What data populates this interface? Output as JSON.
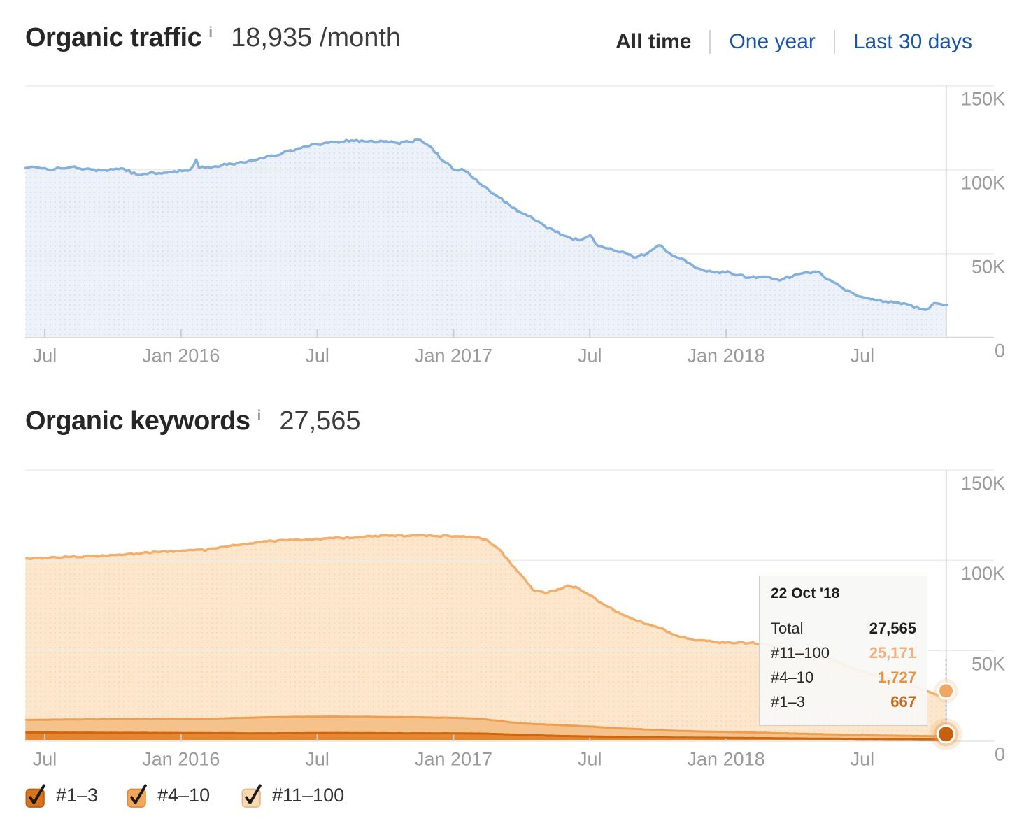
{
  "traffic_section": {
    "title": "Organic traffic",
    "info_icon": "i",
    "value": "18,935 /month",
    "range_tabs": [
      {
        "label": "All time",
        "active": true
      },
      {
        "label": "One year",
        "active": false
      },
      {
        "label": "Last 30 days",
        "active": false
      }
    ]
  },
  "keywords_section": {
    "title": "Organic keywords",
    "info_icon": "i",
    "value": "27,565"
  },
  "tooltip": {
    "date": "22 Oct '18",
    "rows": [
      {
        "label": "Total",
        "value": "27,565",
        "color": "#1f1f1f"
      },
      {
        "label": "#11–100",
        "value": "25,171",
        "color": "#f2b27d"
      },
      {
        "label": "#4–10",
        "value": "1,727",
        "color": "#e8913f"
      },
      {
        "label": "#1–3",
        "value": "667",
        "color": "#ce6a1c"
      }
    ]
  },
  "legend": [
    {
      "label": "#1–3",
      "box_fill": "#d4741f",
      "box_border": "#bc5c12"
    },
    {
      "label": "#4–10",
      "box_fill": "#f2a759",
      "box_border": "#dd8c3c"
    },
    {
      "label": "#11–100",
      "box_fill": "#f8d9b0",
      "box_border": "#e9b87f"
    }
  ],
  "colors": {
    "traffic_line": "#84b0de",
    "traffic_fill": "#edf1f9",
    "link_blue": "#1a56a8"
  },
  "chart_data": [
    {
      "type": "area",
      "title": "Organic traffic",
      "x_tick_labels": [
        "Jul",
        "Jan 2016",
        "Jul",
        "Jan 2017",
        "Jul",
        "Jan 2018",
        "Jul"
      ],
      "y_tick_labels": [
        "150K",
        "100K",
        "50K",
        "0"
      ],
      "ylim": [
        0,
        150000
      ],
      "series": [
        {
          "name": "Organic traffic",
          "stroke": "#84b0de",
          "fill": "#edf1f9",
          "points": [
            [
              "2015-06-05",
              101000
            ],
            [
              "2015-06-20",
              101500
            ],
            [
              "2015-07-01",
              101000
            ],
            [
              "2015-07-15",
              100500
            ],
            [
              "2015-08-01",
              101200
            ],
            [
              "2015-08-10",
              102000
            ],
            [
              "2015-08-20",
              100200
            ],
            [
              "2015-09-01",
              100200
            ],
            [
              "2015-09-15",
              99600
            ],
            [
              "2015-10-01",
              100200
            ],
            [
              "2015-10-15",
              100600
            ],
            [
              "2015-11-01",
              97000
            ],
            [
              "2015-11-15",
              97400
            ],
            [
              "2015-12-01",
              98000
            ],
            [
              "2015-12-15",
              98600
            ],
            [
              "2016-01-01",
              99200
            ],
            [
              "2016-01-12",
              100000
            ],
            [
              "2016-01-20",
              106000
            ],
            [
              "2016-01-24",
              101000
            ],
            [
              "2016-02-01",
              101200
            ],
            [
              "2016-02-15",
              102000
            ],
            [
              "2016-03-01",
              103000
            ],
            [
              "2016-03-15",
              104000
            ],
            [
              "2016-04-01",
              105500
            ],
            [
              "2016-04-15",
              107000
            ],
            [
              "2016-05-01",
              108500
            ],
            [
              "2016-05-15",
              110000
            ],
            [
              "2016-06-01",
              112000
            ],
            [
              "2016-06-15",
              114000
            ],
            [
              "2016-07-01",
              115000
            ],
            [
              "2016-07-15",
              116000
            ],
            [
              "2016-08-01",
              116500
            ],
            [
              "2016-08-15",
              117500
            ],
            [
              "2016-09-01",
              117000
            ],
            [
              "2016-09-15",
              116300
            ],
            [
              "2016-10-01",
              117000
            ],
            [
              "2016-10-15",
              116000
            ],
            [
              "2016-11-01",
              116500
            ],
            [
              "2016-11-12",
              118000
            ],
            [
              "2016-11-20",
              116000
            ],
            [
              "2016-12-01",
              113000
            ],
            [
              "2016-12-15",
              105500
            ],
            [
              "2017-01-01",
              100000
            ],
            [
              "2017-01-10",
              100500
            ],
            [
              "2017-01-18",
              98500
            ],
            [
              "2017-02-01",
              92500
            ],
            [
              "2017-02-15",
              88000
            ],
            [
              "2017-03-01",
              83500
            ],
            [
              "2017-03-15",
              79000
            ],
            [
              "2017-04-01",
              74000
            ],
            [
              "2017-04-15",
              71000
            ],
            [
              "2017-05-01",
              66500
            ],
            [
              "2017-05-15",
              63000
            ],
            [
              "2017-06-01",
              60000
            ],
            [
              "2017-06-15",
              58000
            ],
            [
              "2017-07-01",
              61000
            ],
            [
              "2017-07-08",
              56000
            ],
            [
              "2017-07-15",
              54500
            ],
            [
              "2017-08-01",
              52000
            ],
            [
              "2017-08-17",
              50500
            ],
            [
              "2017-09-01",
              47800
            ],
            [
              "2017-09-15",
              50000
            ],
            [
              "2017-10-01",
              55000
            ],
            [
              "2017-10-08",
              53000
            ],
            [
              "2017-10-15",
              50500
            ],
            [
              "2017-11-01",
              47000
            ],
            [
              "2017-11-15",
              43000
            ],
            [
              "2017-12-01",
              39800
            ],
            [
              "2017-12-15",
              38800
            ],
            [
              "2018-01-01",
              39500
            ],
            [
              "2018-01-15",
              37200
            ],
            [
              "2018-02-01",
              35800
            ],
            [
              "2018-02-15",
              36200
            ],
            [
              "2018-03-01",
              35200
            ],
            [
              "2018-03-15",
              34600
            ],
            [
              "2018-04-01",
              37400
            ],
            [
              "2018-04-15",
              38800
            ],
            [
              "2018-05-01",
              39300
            ],
            [
              "2018-05-15",
              34600
            ],
            [
              "2018-06-01",
              30400
            ],
            [
              "2018-06-15",
              27200
            ],
            [
              "2018-07-01",
              24200
            ],
            [
              "2018-07-15",
              23000
            ],
            [
              "2018-08-01",
              21600
            ],
            [
              "2018-08-15",
              20800
            ],
            [
              "2018-09-01",
              19600
            ],
            [
              "2018-09-15",
              17200
            ],
            [
              "2018-09-25",
              16600
            ],
            [
              "2018-10-05",
              20600
            ],
            [
              "2018-10-14",
              19900
            ],
            [
              "2018-10-22",
              19400
            ]
          ]
        }
      ]
    },
    {
      "type": "stacked_area",
      "title": "Organic keywords",
      "x_tick_labels": [
        "Jul",
        "Jan 2016",
        "Jul",
        "Jan 2017",
        "Jul",
        "Jan 2018",
        "Jul"
      ],
      "y_tick_labels": [
        "150K",
        "100K",
        "50K",
        "0"
      ],
      "ylim": [
        0,
        150000
      ],
      "dates": [
        "2015-06-05",
        "2015-07-01",
        "2015-08-01",
        "2015-09-01",
        "2015-10-01",
        "2015-11-01",
        "2015-12-01",
        "2016-01-01",
        "2016-01-20",
        "2016-02-01",
        "2016-02-10",
        "2016-03-01",
        "2016-04-01",
        "2016-05-01",
        "2016-06-01",
        "2016-07-01",
        "2016-08-01",
        "2016-09-01",
        "2016-10-01",
        "2016-11-01",
        "2016-12-01",
        "2017-01-01",
        "2017-02-01",
        "2017-02-15",
        "2017-03-01",
        "2017-03-15",
        "2017-04-01",
        "2017-04-15",
        "2017-05-01",
        "2017-05-15",
        "2017-06-01",
        "2017-06-15",
        "2017-07-01",
        "2017-07-15",
        "2017-08-01",
        "2017-08-15",
        "2017-09-01",
        "2017-09-15",
        "2017-10-01",
        "2017-10-15",
        "2017-11-01",
        "2017-11-15",
        "2017-12-01",
        "2017-12-15",
        "2018-01-01",
        "2018-01-15",
        "2018-02-01",
        "2018-02-15",
        "2018-03-01",
        "2018-03-15",
        "2018-04-01",
        "2018-04-15",
        "2018-05-01",
        "2018-05-15",
        "2018-06-01",
        "2018-06-15",
        "2018-07-01",
        "2018-07-15",
        "2018-08-01",
        "2018-08-15",
        "2018-09-01",
        "2018-09-15",
        "2018-10-01",
        "2018-10-10",
        "2018-10-22"
      ],
      "series": [
        {
          "name": "#1–3",
          "stroke": "#cd660d",
          "fill": "#e8862f",
          "values": [
            4500,
            4500,
            4400,
            4400,
            4300,
            4300,
            4200,
            4200,
            4200,
            4100,
            4100,
            4100,
            4000,
            4000,
            4100,
            4200,
            4200,
            4100,
            4100,
            4000,
            4000,
            4000,
            3900,
            3800,
            3600,
            3400,
            3200,
            3000,
            2800,
            2600,
            2500,
            2400,
            2300,
            2200,
            2100,
            2000,
            1900,
            1850,
            1800,
            1750,
            1700,
            1650,
            1600,
            1550,
            1500,
            1450,
            1400,
            1350,
            1300,
            1250,
            1200,
            1150,
            1100,
            1050,
            1000,
            950,
            900,
            880,
            850,
            820,
            800,
            750,
            700,
            680,
            667
          ]
        },
        {
          "name": "#4–10",
          "stroke": "#ee9e50",
          "fill": "#f6c28b",
          "values": [
            7000,
            7100,
            7300,
            7400,
            7600,
            7700,
            7800,
            7900,
            7900,
            8000,
            8100,
            8300,
            8700,
            9000,
            9100,
            9100,
            9100,
            9100,
            9000,
            9000,
            8800,
            8600,
            8300,
            7800,
            7400,
            6800,
            6300,
            6200,
            6200,
            6100,
            5900,
            5700,
            5500,
            5200,
            4900,
            4700,
            4500,
            4250,
            4000,
            3850,
            3700,
            3550,
            3400,
            3350,
            3300,
            3200,
            3100,
            3000,
            2900,
            2800,
            2700,
            2600,
            2500,
            2400,
            2300,
            2200,
            2100,
            2020,
            1950,
            1880,
            1800,
            1750,
            1750,
            1740,
            1727
          ]
        },
        {
          "name": "#11–100",
          "stroke": "#f2ae6a",
          "fill": "#fce7cd",
          "values": [
            89500,
            89700,
            90100,
            90500,
            90900,
            91600,
            92500,
            93200,
            93700,
            93100,
            94300,
            95100,
            96600,
            97600,
            98100,
            98500,
            99000,
            99600,
            100700,
            100400,
            100700,
            100600,
            100400,
            98900,
            95000,
            88800,
            81500,
            74300,
            73000,
            74100,
            77600,
            76400,
            72700,
            69100,
            65500,
            62800,
            60100,
            58400,
            56700,
            54400,
            52100,
            50800,
            50500,
            49600,
            49700,
            49650,
            49700,
            49150,
            48300,
            47450,
            46600,
            45250,
            43900,
            42050,
            39700,
            37350,
            35500,
            33600,
            32200,
            30300,
            28400,
            26500,
            24050,
            22780,
            25171
          ]
        }
      ],
      "highlight": {
        "date": "2018-10-22",
        "total": 27565
      }
    }
  ]
}
